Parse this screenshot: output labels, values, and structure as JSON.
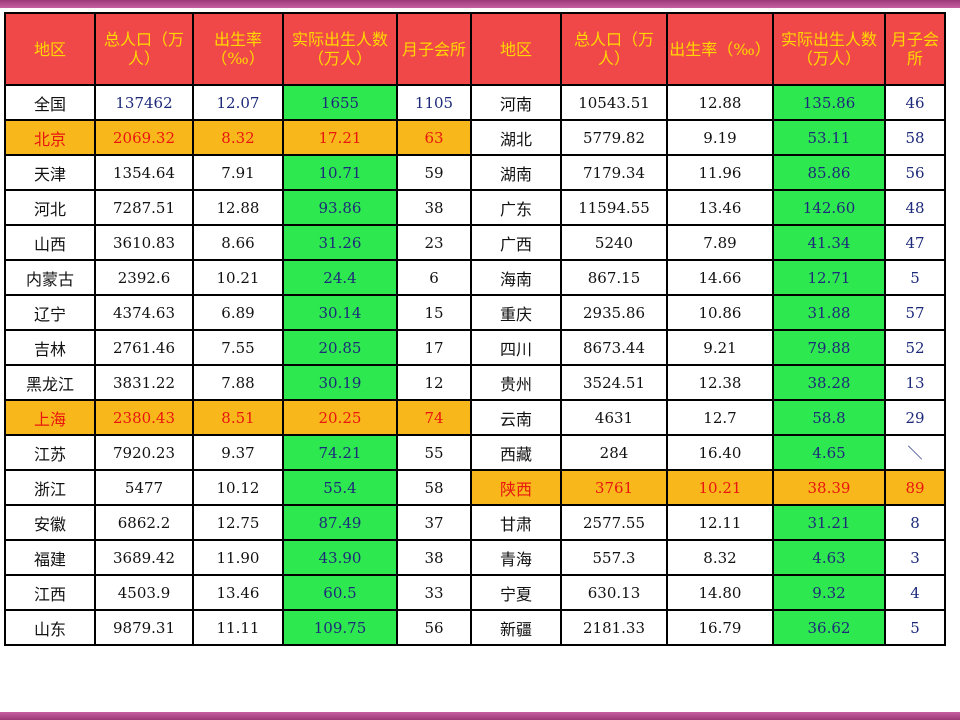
{
  "headers": {
    "left": [
      "地区",
      "总人口（万人）",
      "出生率（‰）",
      "实际出生人数（万人）",
      "月子会所"
    ],
    "right": [
      "地区",
      "总人口（万人）",
      "出生率（‰）",
      "实际出生人数（万人）",
      "月子会所"
    ]
  },
  "rows": [
    {
      "l": [
        "全国",
        "137462",
        "12.07",
        "1655",
        "1105"
      ],
      "r": [
        "河南",
        "10543.51",
        "12.88",
        "135.86",
        "46"
      ]
    },
    {
      "l": [
        "北京",
        "2069.32",
        "8.32",
        "17.21",
        "63"
      ],
      "r": [
        "湖北",
        "5779.82",
        "9.19",
        "53.11",
        "58"
      ]
    },
    {
      "l": [
        "天津",
        "1354.64",
        "7.91",
        "10.71",
        "59"
      ],
      "r": [
        "湖南",
        "7179.34",
        "11.96",
        "85.86",
        "56"
      ]
    },
    {
      "l": [
        "河北",
        "7287.51",
        "12.88",
        "93.86",
        "38"
      ],
      "r": [
        "广东",
        "11594.55",
        "13.46",
        "142.60",
        "48"
      ]
    },
    {
      "l": [
        "山西",
        "3610.83",
        "8.66",
        "31.26",
        "23"
      ],
      "r": [
        "广西",
        "5240",
        "7.89",
        "41.34",
        "47"
      ]
    },
    {
      "l": [
        "内蒙古",
        "2392.6",
        "10.21",
        "24.4",
        "6"
      ],
      "r": [
        "海南",
        "867.15",
        "14.66",
        "12.71",
        "5"
      ]
    },
    {
      "l": [
        "辽宁",
        "4374.63",
        "6.89",
        "30.14",
        "15"
      ],
      "r": [
        "重庆",
        "2935.86",
        "10.86",
        "31.88",
        "57"
      ]
    },
    {
      "l": [
        "吉林",
        "2761.46",
        "7.55",
        "20.85",
        "17"
      ],
      "r": [
        "四川",
        "8673.44",
        "9.21",
        "79.88",
        "52"
      ]
    },
    {
      "l": [
        "黑龙江",
        "3831.22",
        "7.88",
        "30.19",
        "12"
      ],
      "r": [
        "贵州",
        "3524.51",
        "12.38",
        "38.28",
        "13"
      ]
    },
    {
      "l": [
        "上海",
        "2380.43",
        "8.51",
        "20.25",
        "74"
      ],
      "r": [
        "云南",
        "4631",
        "12.7",
        "58.8",
        "29"
      ]
    },
    {
      "l": [
        "江苏",
        "7920.23",
        "9.37",
        "74.21",
        "55"
      ],
      "r": [
        "西藏",
        "284",
        "16.40",
        "4.65",
        "＼"
      ]
    },
    {
      "l": [
        "浙江",
        "5477",
        "10.12",
        "55.4",
        "58"
      ],
      "r": [
        "陕西",
        "3761",
        "10.21",
        "38.39",
        "89"
      ]
    },
    {
      "l": [
        "安徽",
        "6862.2",
        "12.75",
        "87.49",
        "37"
      ],
      "r": [
        "甘肃",
        "2577.55",
        "12.11",
        "31.21",
        "8"
      ]
    },
    {
      "l": [
        "福建",
        "3689.42",
        "11.90",
        "43.90",
        "38"
      ],
      "r": [
        "青海",
        "557.3",
        "8.32",
        "4.63",
        "3"
      ]
    },
    {
      "l": [
        "江西",
        "4503.9",
        "13.46",
        "60.5",
        "33"
      ],
      "r": [
        "宁夏",
        "630.13",
        "14.80",
        "9.32",
        "4"
      ]
    },
    {
      "l": [
        "山东",
        "9879.31",
        "11.11",
        "109.75",
        "56"
      ],
      "r": [
        "新疆",
        "2181.33",
        "16.79",
        "36.62",
        "5"
      ]
    }
  ],
  "highlight_left_rows": [
    1,
    9
  ],
  "highlight_right_rows": [
    11
  ],
  "colors": {
    "header_bg": "#f04848",
    "header_text": "#ffd800",
    "births_bg": "#2ee84f",
    "highlight_bg": "#f8b81c",
    "highlight_text": "#e8160e",
    "accent_bar": "#b04a8c"
  }
}
